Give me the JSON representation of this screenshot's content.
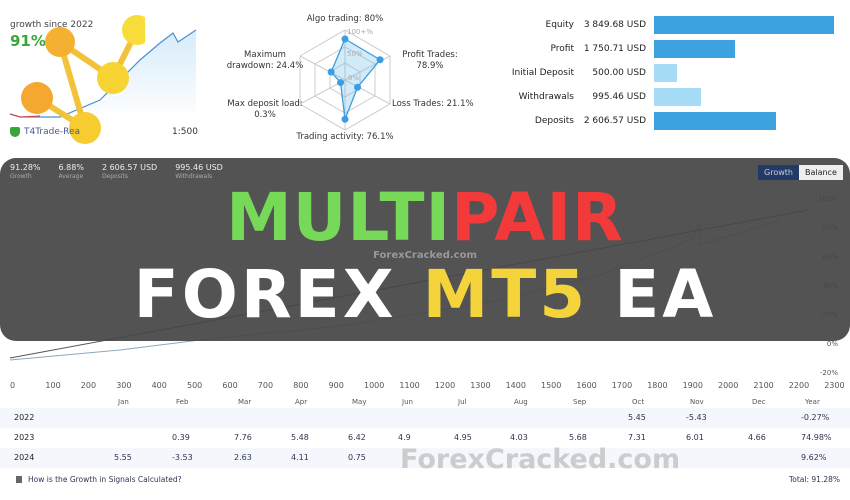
{
  "growth_card": {
    "label": "growth since 2022",
    "value": "91%",
    "broker": "T4Trade-Rea",
    "leverage": "1:500"
  },
  "radar": {
    "algo": "Algo trading: 80%",
    "profit": "Profit Trades:",
    "profit_v": "78.9%",
    "loss": "Loss Trades: 21.1%",
    "activity": "Trading activity: 76.1%",
    "load": "Max deposit load:",
    "load_v": "0.3%",
    "dd": "Maximum",
    "dd_v": "drawdown: 24.4%",
    "scale_100": "100+%",
    "scale_50": "50%",
    "scale_0": "0%",
    "values_pct": {
      "algo": 80,
      "profit": 78.9,
      "loss": 21.1,
      "activity": 76.1,
      "load": 0.3,
      "drawdown": 24.4
    }
  },
  "balance": {
    "items": [
      {
        "label": "Equity",
        "value": "3 849.68 USD",
        "fraction": 1.0,
        "color": "#3ca3e0"
      },
      {
        "label": "Profit",
        "value": "1 750.71 USD",
        "fraction": 0.45,
        "color": "#3ca3e0"
      },
      {
        "label": "Initial Deposit",
        "value": "500.00 USD",
        "fraction": 0.13,
        "color": "#a6dcf5"
      },
      {
        "label": "Withdrawals",
        "value": "995.46 USD",
        "fraction": 0.26,
        "color": "#a6dcf5"
      },
      {
        "label": "Deposits",
        "value": "2 606.57 USD",
        "fraction": 0.68,
        "color": "#3ca3e0"
      }
    ]
  },
  "stats": [
    {
      "value": "91.28%",
      "label": "Growth"
    },
    {
      "value": "6.88%",
      "label": "Average"
    },
    {
      "value": "2 606.57 USD",
      "label": "Deposits"
    },
    {
      "value": "995.46 USD",
      "label": "Withdrawals"
    }
  ],
  "tabs": {
    "growth": "Growth",
    "balance": "Balance"
  },
  "banner": {
    "line1a": "MULTI",
    "line1b": "PAIR",
    "line2a": "FOREX ",
    "line2b": "MT5",
    "line2c": " EA",
    "watermark": "ForexCracked.com",
    "watermark2": "ForexCracked.com",
    "color_green": "#76d957",
    "color_red": "#f23a3a",
    "color_yellow": "#f5d33a"
  },
  "y_ticks": [
    "100%",
    "80%",
    "60%",
    "40%",
    "20%",
    "0%",
    "-20%"
  ],
  "x_ticks": [
    "0",
    "100",
    "200",
    "300",
    "400",
    "500",
    "600",
    "700",
    "800",
    "900",
    "1000",
    "1100",
    "1200",
    "1300",
    "1400",
    "1500",
    "1600",
    "1700",
    "1800",
    "1900",
    "2000",
    "2100",
    "2200",
    "2300"
  ],
  "months": [
    "Jan",
    "Feb",
    "Mar",
    "Apr",
    "May",
    "Jun",
    "Jul",
    "Aug",
    "Sep",
    "Oct",
    "Nov",
    "Dec",
    "Year"
  ],
  "table": [
    {
      "year": "2022",
      "cells": [
        "",
        "",
        "",
        "",
        "",
        "",
        "",
        "",
        "",
        "5.45",
        "-5.43",
        "",
        "-0.27%"
      ]
    },
    {
      "year": "2023",
      "cells": [
        "",
        "0.39",
        "7.76",
        "5.48",
        "6.42",
        "4.9",
        "4.95",
        "4.03",
        "5.68",
        "7.31",
        "6.01",
        "4.66",
        "74.98%"
      ]
    },
    {
      "year": "2024",
      "cells": [
        "5.55",
        "-3.53",
        "2.63",
        "4.11",
        "0.75",
        "",
        "",
        "",
        "",
        "",
        "",
        "",
        "9.62%"
      ]
    }
  ],
  "footer": {
    "link": "How is the Growth in Signals Calculated?",
    "total": "Total: 91.28%"
  }
}
